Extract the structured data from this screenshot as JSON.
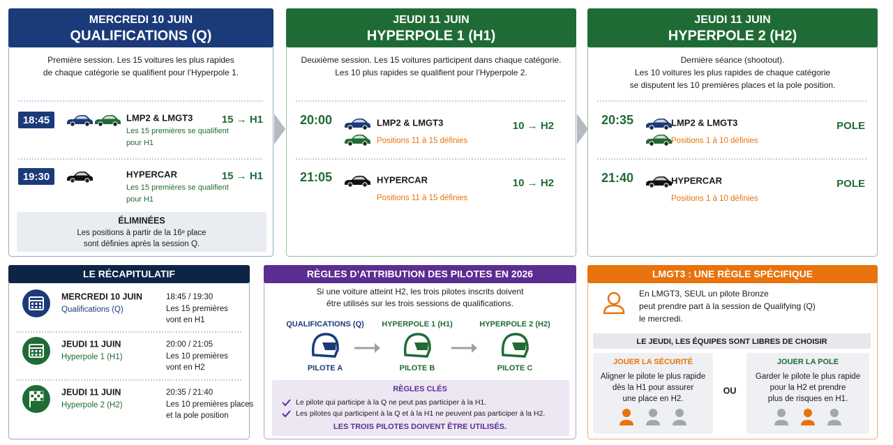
{
  "panels": [
    {
      "day": "MERCREDI 10 JUIN",
      "title": "QUALIFICATIONS (Q)",
      "description": [
        "Première session. Les 15 voitures les plus rapides",
        "de chaque catégorie se qualifient pour l’Hyperpole 1."
      ],
      "sessions": [
        {
          "time": "18:45",
          "class": "LMP2 & LMGT3",
          "note": [
            "Les 15 premières se qualifient",
            "pour H1"
          ],
          "result": "15 → H1"
        },
        {
          "time": "19:30",
          "class": "HYPERCAR",
          "note": [
            "Les 15 premières se qualifient",
            "pour H1"
          ],
          "result": "15 → H1"
        }
      ],
      "eliminated": {
        "title": "ÉLIMINÉES",
        "text": [
          "Les positions à partir de la 16ᵉ place",
          "sont définies après la session Q."
        ]
      }
    },
    {
      "day": "JEUDI 11 JUIN",
      "title": "HYPERPOLE 1 (H1)",
      "description": [
        "Deuxième session. Les 15 voitures participent dans chaque catégorie.",
        "Les 10 plus rapides se qualifient pour l’Hyperpole 2."
      ],
      "sessions": [
        {
          "time": "20:00",
          "class": "LMP2 & LMGT3",
          "note": [
            "Positions 11 à 15 définies"
          ],
          "result": "10 → H2"
        },
        {
          "time": "21:05",
          "class": "HYPERCAR",
          "note": [
            "Positions 11 à 15 définies"
          ],
          "result": "10 → H2"
        }
      ]
    },
    {
      "day": "JEUDI 11 JUIN",
      "title": "HYPERPOLE 2 (H2)",
      "description": [
        "Dernière séance (shootout).",
        "Les 10 voitures les plus rapides de chaque catégorie",
        "se disputent les 10 premières places et la pole position."
      ],
      "sessions": [
        {
          "time": "20:35",
          "class": "LMP2 & LMGT3",
          "note": [
            "Positions 1 à 10 définies"
          ],
          "result": "POLE"
        },
        {
          "time": "21:40",
          "class": "HYPERCAR",
          "note": [
            "Positions 1 à 10 définies"
          ],
          "result": "POLE"
        }
      ]
    }
  ],
  "recap": {
    "title": "LE RÉCAPITULATIF",
    "items": [
      {
        "day": "MERCREDI 10 JUIN",
        "session": "Qualifications (Q)",
        "times": "18:45 / 19:30",
        "text": [
          "Les 15 premières",
          "vont en H1"
        ]
      },
      {
        "day": "JEUDI 11 JUIN",
        "session": "Hyperpole 1 (H1)",
        "times": "20:00 / 21:05",
        "text": [
          "Les 10 premières",
          "vont en H2"
        ]
      },
      {
        "day": "JEUDI 11 JUIN",
        "session": "Hyperpole 2 (H2)",
        "times": "20:35 / 21:40",
        "text": [
          "Les 10 premières places",
          "et la pole position"
        ]
      }
    ]
  },
  "rules": {
    "title": "RÈGLES D’ATTRIBUTION DES PILOTES EN 2026",
    "text": [
      "Si une voiture atteint H2, les trois pilotes inscrits doivent",
      "être utilisés sur les trois sessions de qualifications."
    ],
    "steps": [
      {
        "session": "QUALIFICATIONS (Q)",
        "pilot": "PILOTE A"
      },
      {
        "session": "HYPERPOLE 1 (H1)",
        "pilot": "PILOTE B"
      },
      {
        "session": "HYPERPOLE 2 (H2)",
        "pilot": "PILOTE C"
      }
    ],
    "key_rules": {
      "title": "RÈGLES CLÉS",
      "items": [
        "Le pilote qui participe à la Q ne peut pas participer à la H1.",
        "Les pilotes qui participent à la Q et à la H1 ne peuvent pas participer à la H2."
      ],
      "conclusion": "LES TROIS PILOTES DOIVENT ÊTRE UTILISÉS."
    }
  },
  "lmgt3": {
    "title": "LMGT3 : UNE RÈGLE SPÉCIFIQUE",
    "text": [
      "En LMGT3, SEUL un pilote Bronze",
      "peut prendre part à la session de Qualifying (Q)",
      "le mercredi."
    ],
    "choice": "LE JEUDI, LES ÉQUIPES SONT LIBRES DE CHOISIR",
    "options": [
      {
        "title": "JOUER LA SÉCURITÉ",
        "text": [
          "Aligner le pilote le plus rapide",
          "dès la H1 pour assurer",
          "une place en H2."
        ]
      },
      {
        "title": "JOUER LA POLE",
        "text": [
          "Garder le pilote le plus rapide",
          "pour la H2 et prendre",
          "plus de risques en H1."
        ]
      }
    ],
    "or": "OU"
  }
}
